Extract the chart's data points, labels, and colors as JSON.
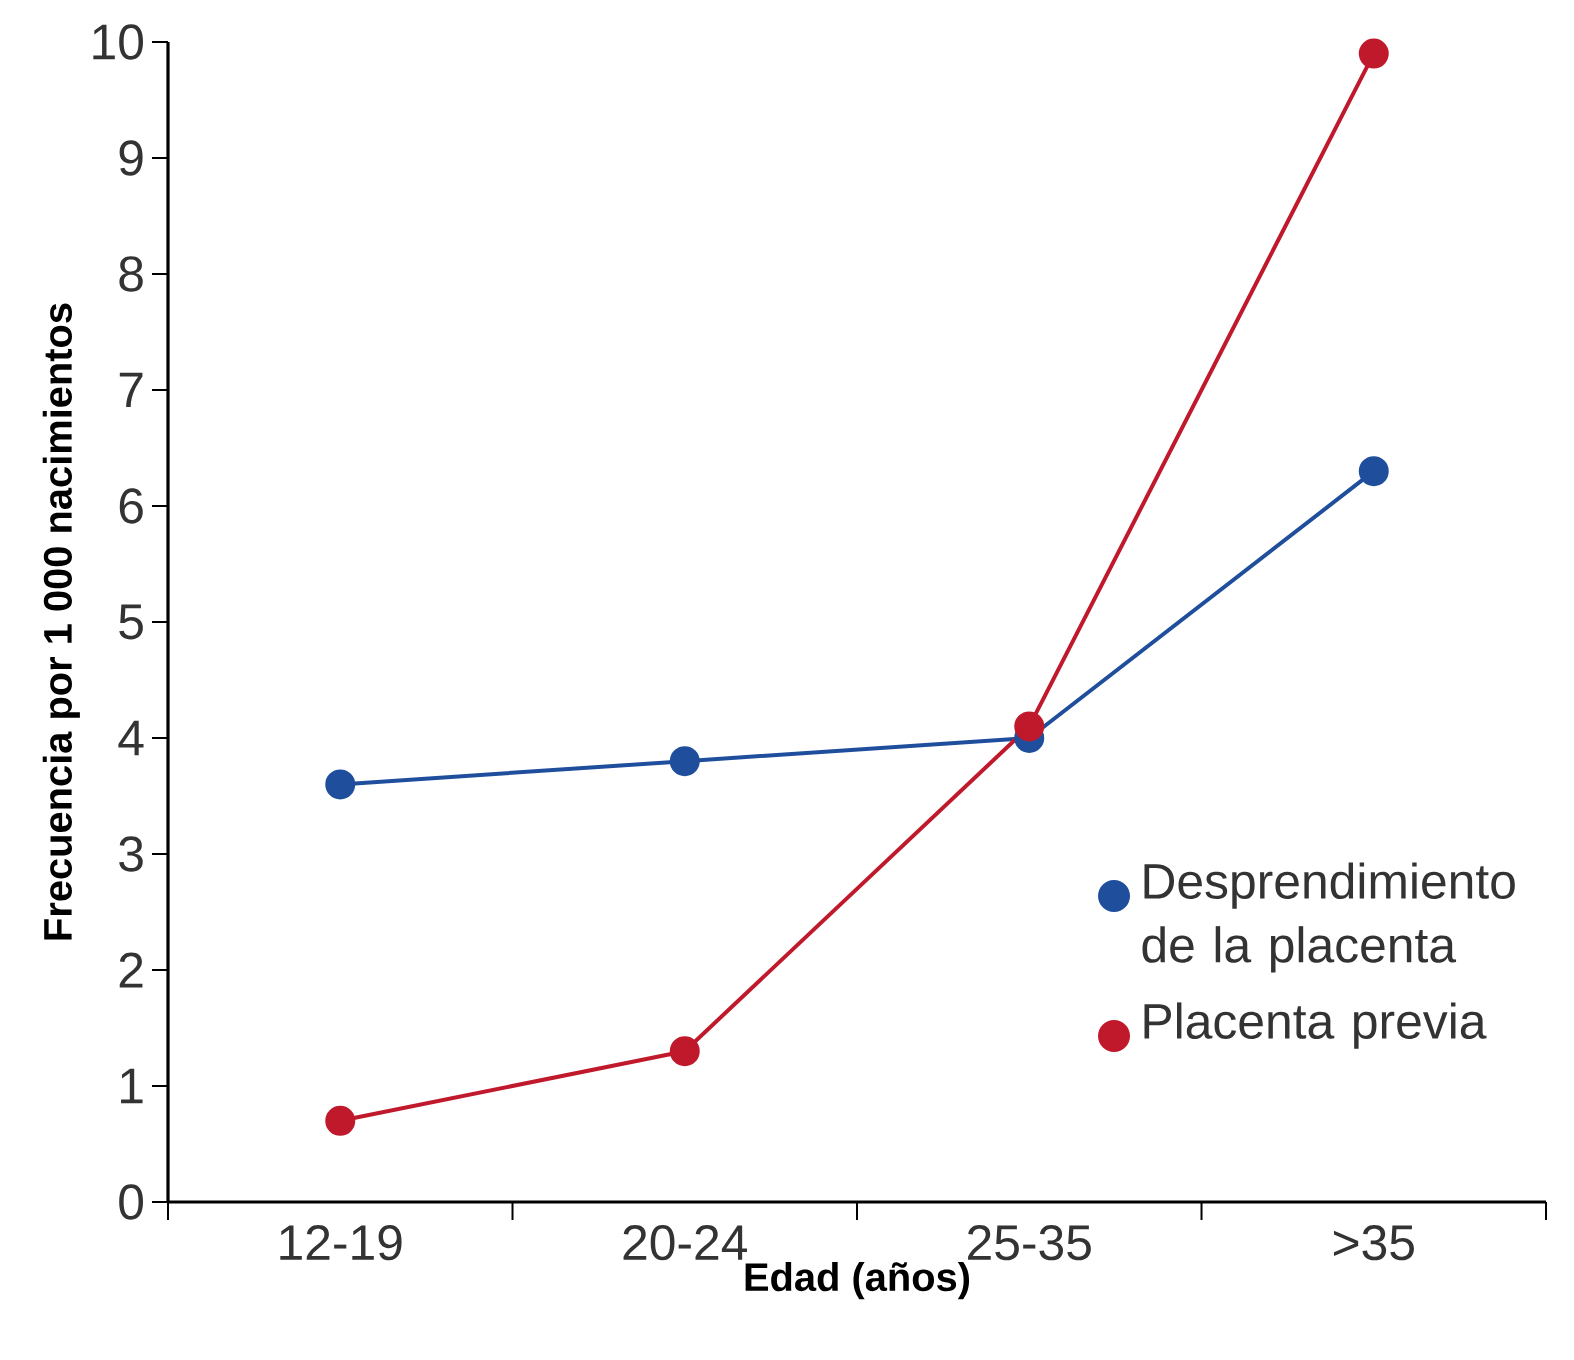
{
  "chart_data": {
    "type": "line",
    "xlabel": "Edad (años)",
    "ylabel": "Frecuencia por 1 000 nacimientos",
    "categories": [
      "12-19",
      "20-24",
      "25-35",
      ">35"
    ],
    "series": [
      {
        "name": "Desprendimiento de la placenta",
        "color": "#1f4e9c",
        "values": [
          3.6,
          3.8,
          4.0,
          6.3
        ]
      },
      {
        "name": "Placenta previa",
        "color": "#c0192c",
        "values": [
          0.7,
          1.3,
          4.1,
          9.9
        ]
      }
    ],
    "ylim": [
      0,
      10
    ],
    "yticks": [
      0,
      1,
      2,
      3,
      4,
      5,
      6,
      7,
      8,
      9,
      10
    ],
    "marker": "circle",
    "line_style": "solid",
    "legend": "bottom right",
    "grid": false
  }
}
